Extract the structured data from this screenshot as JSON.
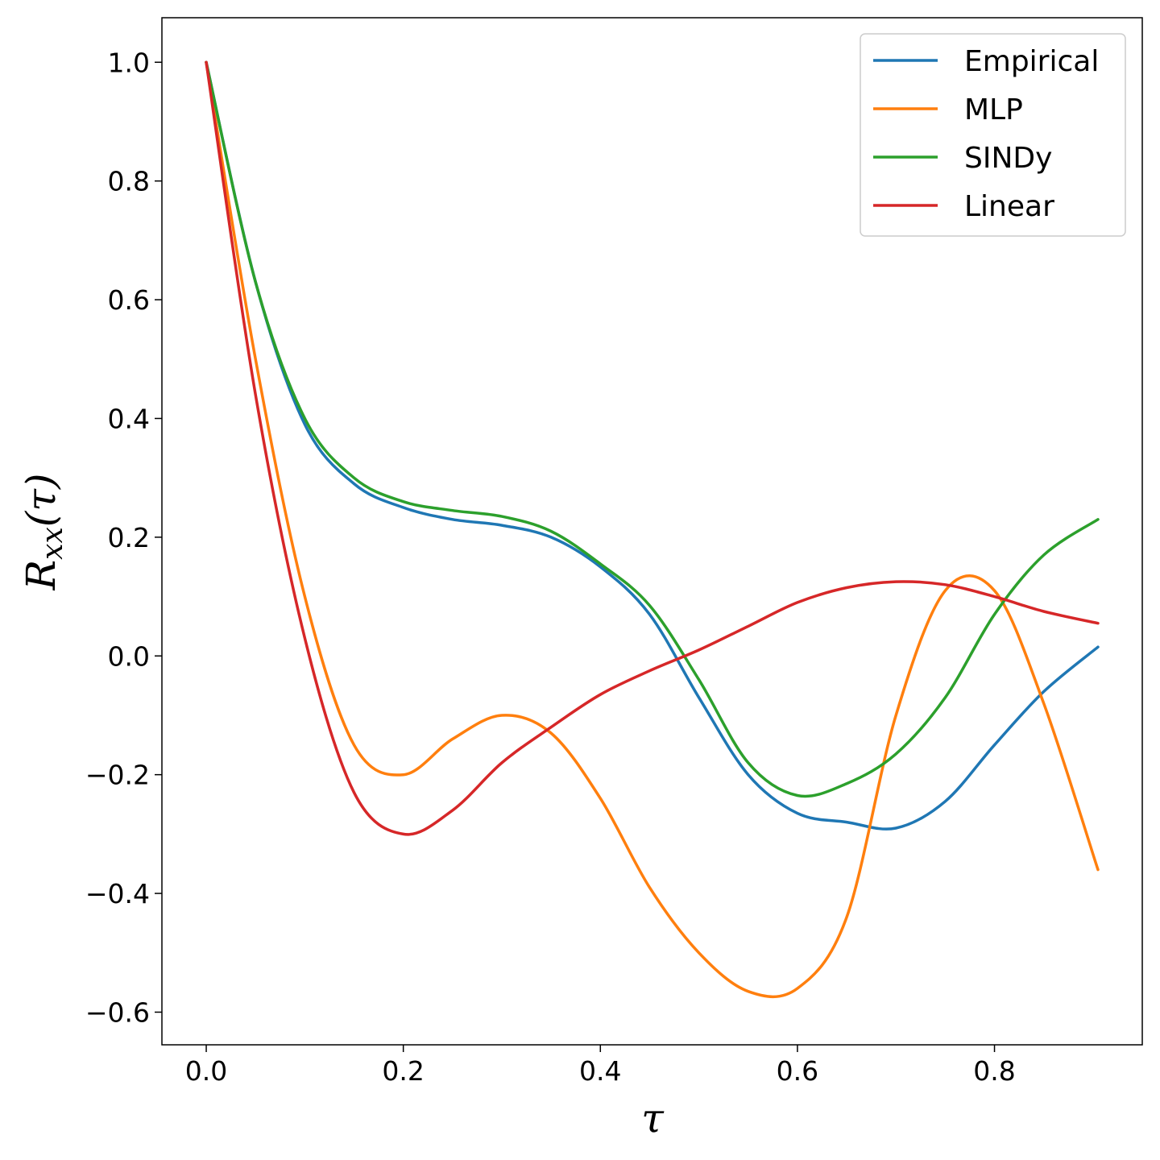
{
  "chart_data": {
    "type": "line",
    "xlabel": "τ",
    "ylabel_main": "R",
    "ylabel_sub": "xx",
    "ylabel_arg": "(τ)",
    "xlim": [
      -0.045,
      0.95
    ],
    "ylim": [
      -0.655,
      1.075
    ],
    "xticks": [
      0.0,
      0.2,
      0.4,
      0.6,
      0.8
    ],
    "xtick_labels": [
      "0.0",
      "0.2",
      "0.4",
      "0.6",
      "0.8"
    ],
    "yticks": [
      -0.6,
      -0.4,
      -0.2,
      0.0,
      0.2,
      0.4,
      0.6,
      0.8,
      1.0
    ],
    "ytick_labels": [
      "−0.6",
      "−0.4",
      "−0.2",
      "0.0",
      "0.2",
      "0.4",
      "0.6",
      "0.8",
      "1.0"
    ],
    "grid": false,
    "legend_position": "top-right",
    "x": [
      0.0,
      0.05,
      0.1,
      0.15,
      0.2,
      0.25,
      0.3,
      0.35,
      0.4,
      0.45,
      0.5,
      0.55,
      0.6,
      0.65,
      0.7,
      0.75,
      0.8,
      0.85,
      0.905
    ],
    "series": [
      {
        "name": "Empirical",
        "color": "#1f77b4",
        "values": [
          1.0,
          0.63,
          0.39,
          0.29,
          0.25,
          0.23,
          0.22,
          0.2,
          0.15,
          0.07,
          -0.07,
          -0.2,
          -0.265,
          -0.28,
          -0.29,
          -0.245,
          -0.15,
          -0.06,
          0.015
        ]
      },
      {
        "name": "MLP",
        "color": "#ff7f0e",
        "values": [
          1.0,
          0.5,
          0.1,
          -0.15,
          -0.2,
          -0.14,
          -0.1,
          -0.13,
          -0.24,
          -0.39,
          -0.5,
          -0.565,
          -0.56,
          -0.44,
          -0.1,
          0.11,
          0.11,
          -0.08,
          -0.36
        ]
      },
      {
        "name": "SINDy",
        "color": "#2ca02c",
        "values": [
          1.0,
          0.63,
          0.4,
          0.3,
          0.26,
          0.245,
          0.235,
          0.21,
          0.155,
          0.085,
          -0.04,
          -0.18,
          -0.235,
          -0.215,
          -0.165,
          -0.07,
          0.07,
          0.17,
          0.23
        ]
      },
      {
        "name": "Linear",
        "color": "#d62728",
        "values": [
          1.0,
          0.44,
          0.03,
          -0.23,
          -0.3,
          -0.26,
          -0.18,
          -0.12,
          -0.065,
          -0.025,
          0.01,
          0.05,
          0.09,
          0.115,
          0.125,
          0.12,
          0.1,
          0.075,
          0.055
        ]
      }
    ]
  }
}
